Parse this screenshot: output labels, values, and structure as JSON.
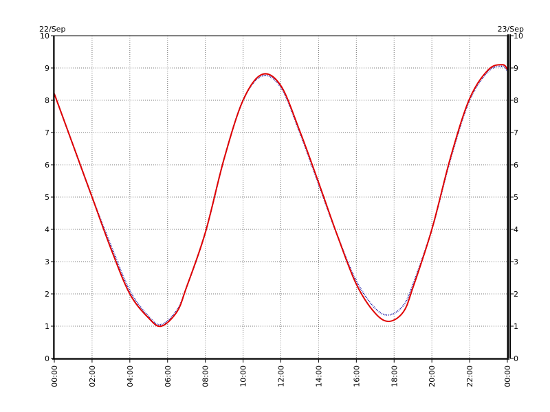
{
  "chart_data": {
    "type": "line",
    "title": "",
    "xlabel": "",
    "ylabel": "",
    "date_left": "22/Sep",
    "date_right": "23/Sep",
    "ylim": [
      0,
      10
    ],
    "xlim_hours": [
      0,
      24
    ],
    "y_ticks": [
      "0",
      "1",
      "2",
      "3",
      "4",
      "5",
      "6",
      "7",
      "8",
      "9",
      "10"
    ],
    "x_ticks": [
      "00:00",
      "02:00",
      "04:00",
      "06:00",
      "08:00",
      "10:00",
      "12:00",
      "14:00",
      "16:00",
      "18:00",
      "20:00",
      "22:00",
      "00:00"
    ],
    "grid": true,
    "series": [
      {
        "color": "#1a1aa6",
        "style": "dotted",
        "x": [
          "00:00",
          "01:00",
          "02:00",
          "03:00",
          "04:00",
          "05:00",
          "05:40",
          "06:30",
          "07:00",
          "08:00",
          "09:00",
          "10:00",
          "11:00",
          "12:00",
          "13:00",
          "14:00",
          "15:00",
          "16:00",
          "17:00",
          "17:45",
          "18:30",
          "19:00",
          "20:00",
          "21:00",
          "22:00",
          "23:00",
          "23:45",
          "24:00"
        ],
        "y": [
          8.2,
          6.6,
          5.0,
          3.5,
          2.1,
          1.3,
          1.05,
          1.5,
          2.2,
          3.9,
          6.2,
          8.0,
          8.75,
          8.4,
          7.0,
          5.4,
          3.8,
          2.4,
          1.55,
          1.35,
          1.65,
          2.3,
          4.0,
          6.2,
          8.0,
          8.9,
          9.05,
          8.9
        ]
      },
      {
        "color": "#e00000",
        "style": "solid",
        "x": [
          "00:00",
          "01:00",
          "02:00",
          "03:00",
          "04:00",
          "05:00",
          "05:40",
          "06:30",
          "07:00",
          "08:00",
          "09:00",
          "10:00",
          "11:00",
          "12:00",
          "13:00",
          "14:00",
          "15:00",
          "16:00",
          "17:00",
          "17:45",
          "18:30",
          "19:00",
          "20:00",
          "21:00",
          "22:00",
          "23:00",
          "23:45",
          "24:00"
        ],
        "y": [
          8.2,
          6.6,
          5.0,
          3.4,
          2.0,
          1.25,
          1.0,
          1.45,
          2.2,
          3.9,
          6.2,
          8.0,
          8.8,
          8.45,
          7.05,
          5.45,
          3.8,
          2.3,
          1.4,
          1.15,
          1.45,
          2.2,
          4.0,
          6.25,
          8.05,
          8.95,
          9.1,
          8.95
        ]
      }
    ]
  }
}
